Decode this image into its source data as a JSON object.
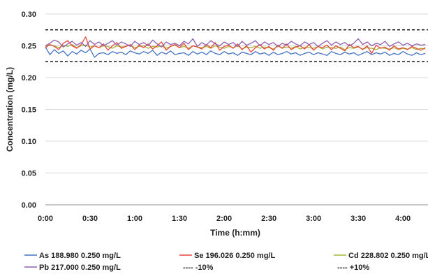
{
  "chart_data": {
    "type": "line",
    "xlabel": "Time (h:mm)",
    "ylabel": "Concentration (mg/L)",
    "ylim": [
      0,
      0.3
    ],
    "xlim": [
      0,
      4.28
    ],
    "y_ticks": [
      0.0,
      0.05,
      0.1,
      0.15,
      0.2,
      0.25,
      0.3
    ],
    "y_tick_labels": [
      "0.00",
      "0.05",
      "0.10",
      "0.15",
      "0.20",
      "0.25",
      "0.30"
    ],
    "x_ticks": [
      0,
      0.5,
      1.0,
      1.5,
      2.0,
      2.5,
      3.0,
      3.5,
      4.0
    ],
    "x_tick_labels": [
      "0:00",
      "0:30",
      "1:00",
      "1:30",
      "2:00",
      "2:30",
      "3:00",
      "3:30",
      "4:00"
    ],
    "grid": "horizontal",
    "legend_position": "bottom",
    "series": [
      {
        "name": "As 188.980 0.250 mg/L",
        "color": "#4472c4",
        "style": "solid",
        "x": [
          0.0,
          0.05,
          0.1,
          0.15,
          0.2,
          0.25,
          0.3,
          0.35,
          0.4,
          0.45,
          0.5,
          0.55,
          0.6,
          0.65,
          0.7,
          0.75,
          0.8,
          0.85,
          0.9,
          0.95,
          1.0,
          1.05,
          1.1,
          1.15,
          1.2,
          1.25,
          1.3,
          1.35,
          1.4,
          1.45,
          1.5,
          1.55,
          1.6,
          1.65,
          1.7,
          1.75,
          1.8,
          1.85,
          1.9,
          1.95,
          2.0,
          2.05,
          2.1,
          2.15,
          2.2,
          2.25,
          2.3,
          2.35,
          2.4,
          2.45,
          2.5,
          2.55,
          2.6,
          2.65,
          2.7,
          2.75,
          2.8,
          2.85,
          2.9,
          2.95,
          3.0,
          3.05,
          3.1,
          3.15,
          3.2,
          3.25,
          3.3,
          3.35,
          3.4,
          3.45,
          3.5,
          3.55,
          3.6,
          3.65,
          3.7,
          3.75,
          3.8,
          3.85,
          3.9,
          3.95,
          4.0,
          4.05,
          4.1,
          4.15,
          4.2,
          4.25
        ],
        "values": [
          0.248,
          0.236,
          0.244,
          0.238,
          0.242,
          0.234,
          0.241,
          0.237,
          0.243,
          0.239,
          0.245,
          0.232,
          0.238,
          0.239,
          0.236,
          0.241,
          0.238,
          0.24,
          0.236,
          0.242,
          0.239,
          0.237,
          0.241,
          0.238,
          0.243,
          0.235,
          0.24,
          0.237,
          0.242,
          0.236,
          0.238,
          0.239,
          0.235,
          0.241,
          0.237,
          0.24,
          0.236,
          0.242,
          0.238,
          0.236,
          0.241,
          0.237,
          0.239,
          0.235,
          0.24,
          0.238,
          0.236,
          0.241,
          0.237,
          0.239,
          0.235,
          0.24,
          0.236,
          0.238,
          0.241,
          0.237,
          0.239,
          0.235,
          0.238,
          0.24,
          0.236,
          0.239,
          0.237,
          0.235,
          0.241,
          0.238,
          0.236,
          0.24,
          0.237,
          0.239,
          0.235,
          0.238,
          0.241,
          0.236,
          0.239,
          0.237,
          0.24,
          0.235,
          0.238,
          0.236,
          0.241,
          0.237,
          0.235,
          0.239,
          0.236,
          0.238
        ]
      },
      {
        "name": "Se 196.026 0.250 mg/L",
        "color": "#e8473a",
        "style": "solid",
        "x": [
          0.0,
          0.05,
          0.1,
          0.15,
          0.2,
          0.25,
          0.3,
          0.35,
          0.4,
          0.45,
          0.5,
          0.55,
          0.6,
          0.65,
          0.7,
          0.75,
          0.8,
          0.85,
          0.9,
          0.95,
          1.0,
          1.05,
          1.1,
          1.15,
          1.2,
          1.25,
          1.3,
          1.35,
          1.4,
          1.45,
          1.5,
          1.55,
          1.6,
          1.65,
          1.7,
          1.75,
          1.8,
          1.85,
          1.9,
          1.95,
          2.0,
          2.05,
          2.1,
          2.15,
          2.2,
          2.25,
          2.3,
          2.35,
          2.4,
          2.45,
          2.5,
          2.55,
          2.6,
          2.65,
          2.7,
          2.75,
          2.8,
          2.85,
          2.9,
          2.95,
          3.0,
          3.05,
          3.1,
          3.15,
          3.2,
          3.25,
          3.3,
          3.35,
          3.4,
          3.45,
          3.5,
          3.55,
          3.6,
          3.65,
          3.7,
          3.75,
          3.8,
          3.85,
          3.9,
          3.95,
          4.0,
          4.05,
          4.1,
          4.15,
          4.2,
          4.25
        ],
        "values": [
          0.247,
          0.252,
          0.249,
          0.244,
          0.254,
          0.258,
          0.25,
          0.246,
          0.252,
          0.264,
          0.245,
          0.25,
          0.247,
          0.253,
          0.243,
          0.25,
          0.255,
          0.246,
          0.249,
          0.252,
          0.244,
          0.251,
          0.247,
          0.253,
          0.245,
          0.25,
          0.256,
          0.243,
          0.249,
          0.252,
          0.247,
          0.254,
          0.244,
          0.25,
          0.248,
          0.245,
          0.252,
          0.247,
          0.255,
          0.243,
          0.249,
          0.251,
          0.246,
          0.253,
          0.244,
          0.25,
          0.24,
          0.247,
          0.252,
          0.245,
          0.249,
          0.243,
          0.251,
          0.246,
          0.253,
          0.244,
          0.248,
          0.25,
          0.245,
          0.252,
          0.243,
          0.249,
          0.247,
          0.251,
          0.244,
          0.25,
          0.246,
          0.242,
          0.252,
          0.247,
          0.249,
          0.244,
          0.25,
          0.238,
          0.251,
          0.246,
          0.248,
          0.243,
          0.25,
          0.245,
          0.247,
          0.244,
          0.249,
          0.246,
          0.243,
          0.247
        ]
      },
      {
        "name": "Cd 228.802 0.250 mg/L",
        "color": "#a6b53a",
        "style": "solid",
        "x": [
          0.0,
          0.05,
          0.1,
          0.15,
          0.2,
          0.25,
          0.3,
          0.35,
          0.4,
          0.45,
          0.5,
          0.55,
          0.6,
          0.65,
          0.7,
          0.75,
          0.8,
          0.85,
          0.9,
          0.95,
          1.0,
          1.05,
          1.1,
          1.15,
          1.2,
          1.25,
          1.3,
          1.35,
          1.4,
          1.45,
          1.5,
          1.55,
          1.6,
          1.65,
          1.7,
          1.75,
          1.8,
          1.85,
          1.9,
          1.95,
          2.0,
          2.05,
          2.1,
          2.15,
          2.2,
          2.25,
          2.3,
          2.35,
          2.4,
          2.45,
          2.5,
          2.55,
          2.6,
          2.65,
          2.7,
          2.75,
          2.8,
          2.85,
          2.9,
          2.95,
          3.0,
          3.05,
          3.1,
          3.15,
          3.2,
          3.25,
          3.3,
          3.35,
          3.4,
          3.45,
          3.5,
          3.55,
          3.6,
          3.65,
          3.7,
          3.75,
          3.8,
          3.85,
          3.9,
          3.95,
          4.0,
          4.05,
          4.1,
          4.15,
          4.2,
          4.25
        ],
        "values": [
          0.249,
          0.251,
          0.25,
          0.247,
          0.251,
          0.249,
          0.252,
          0.247,
          0.25,
          0.251,
          0.248,
          0.25,
          0.247,
          0.25,
          0.249,
          0.246,
          0.25,
          0.248,
          0.249,
          0.251,
          0.247,
          0.249,
          0.25,
          0.246,
          0.249,
          0.248,
          0.25,
          0.246,
          0.249,
          0.251,
          0.247,
          0.249,
          0.246,
          0.25,
          0.248,
          0.247,
          0.249,
          0.246,
          0.25,
          0.248,
          0.246,
          0.249,
          0.247,
          0.25,
          0.245,
          0.248,
          0.247,
          0.249,
          0.246,
          0.248,
          0.247,
          0.245,
          0.249,
          0.247,
          0.248,
          0.246,
          0.249,
          0.245,
          0.248,
          0.247,
          0.246,
          0.249,
          0.245,
          0.248,
          0.247,
          0.246,
          0.248,
          0.244,
          0.247,
          0.246,
          0.248,
          0.245,
          0.247,
          0.246,
          0.244,
          0.247,
          0.246,
          0.245,
          0.247,
          0.244,
          0.246,
          0.245,
          0.247,
          0.244,
          0.246,
          0.245
        ]
      },
      {
        "name": "Pb 217.000 0.250 mg/L",
        "color": "#8e5fb0",
        "style": "solid",
        "x": [
          0.0,
          0.05,
          0.1,
          0.15,
          0.2,
          0.25,
          0.3,
          0.35,
          0.4,
          0.45,
          0.5,
          0.55,
          0.6,
          0.65,
          0.7,
          0.75,
          0.8,
          0.85,
          0.9,
          0.95,
          1.0,
          1.05,
          1.1,
          1.15,
          1.2,
          1.25,
          1.3,
          1.35,
          1.4,
          1.45,
          1.5,
          1.55,
          1.6,
          1.65,
          1.7,
          1.75,
          1.8,
          1.85,
          1.9,
          1.95,
          2.0,
          2.05,
          2.1,
          2.15,
          2.2,
          2.25,
          2.3,
          2.35,
          2.4,
          2.45,
          2.5,
          2.55,
          2.6,
          2.65,
          2.7,
          2.75,
          2.8,
          2.85,
          2.9,
          2.95,
          3.0,
          3.05,
          3.1,
          3.15,
          3.2,
          3.25,
          3.3,
          3.35,
          3.4,
          3.45,
          3.5,
          3.55,
          3.6,
          3.65,
          3.7,
          3.75,
          3.8,
          3.85,
          3.9,
          3.95,
          4.0,
          4.05,
          4.1,
          4.15,
          4.2,
          4.25
        ],
        "values": [
          0.25,
          0.254,
          0.259,
          0.256,
          0.248,
          0.253,
          0.257,
          0.251,
          0.255,
          0.249,
          0.258,
          0.252,
          0.256,
          0.25,
          0.254,
          0.258,
          0.251,
          0.256,
          0.253,
          0.249,
          0.257,
          0.252,
          0.255,
          0.25,
          0.259,
          0.253,
          0.248,
          0.256,
          0.252,
          0.254,
          0.25,
          0.257,
          0.253,
          0.261,
          0.249,
          0.255,
          0.251,
          0.258,
          0.253,
          0.25,
          0.256,
          0.252,
          0.255,
          0.249,
          0.257,
          0.251,
          0.254,
          0.258,
          0.25,
          0.256,
          0.252,
          0.255,
          0.249,
          0.254,
          0.251,
          0.257,
          0.253,
          0.25,
          0.256,
          0.252,
          0.255,
          0.249,
          0.254,
          0.258,
          0.251,
          0.256,
          0.252,
          0.255,
          0.25,
          0.254,
          0.261,
          0.252,
          0.256,
          0.25,
          0.254,
          0.252,
          0.257,
          0.249,
          0.253,
          0.256,
          0.251,
          0.254,
          0.25,
          0.253,
          0.251,
          0.252
        ]
      },
      {
        "name": "-10%",
        "color": "#000000",
        "style": "dashed",
        "x": [
          0.0,
          4.28
        ],
        "values": [
          0.225,
          0.225
        ]
      },
      {
        "name": "+10%",
        "color": "#000000",
        "style": "dashed",
        "x": [
          0.0,
          4.28
        ],
        "values": [
          0.275,
          0.275
        ]
      }
    ]
  }
}
